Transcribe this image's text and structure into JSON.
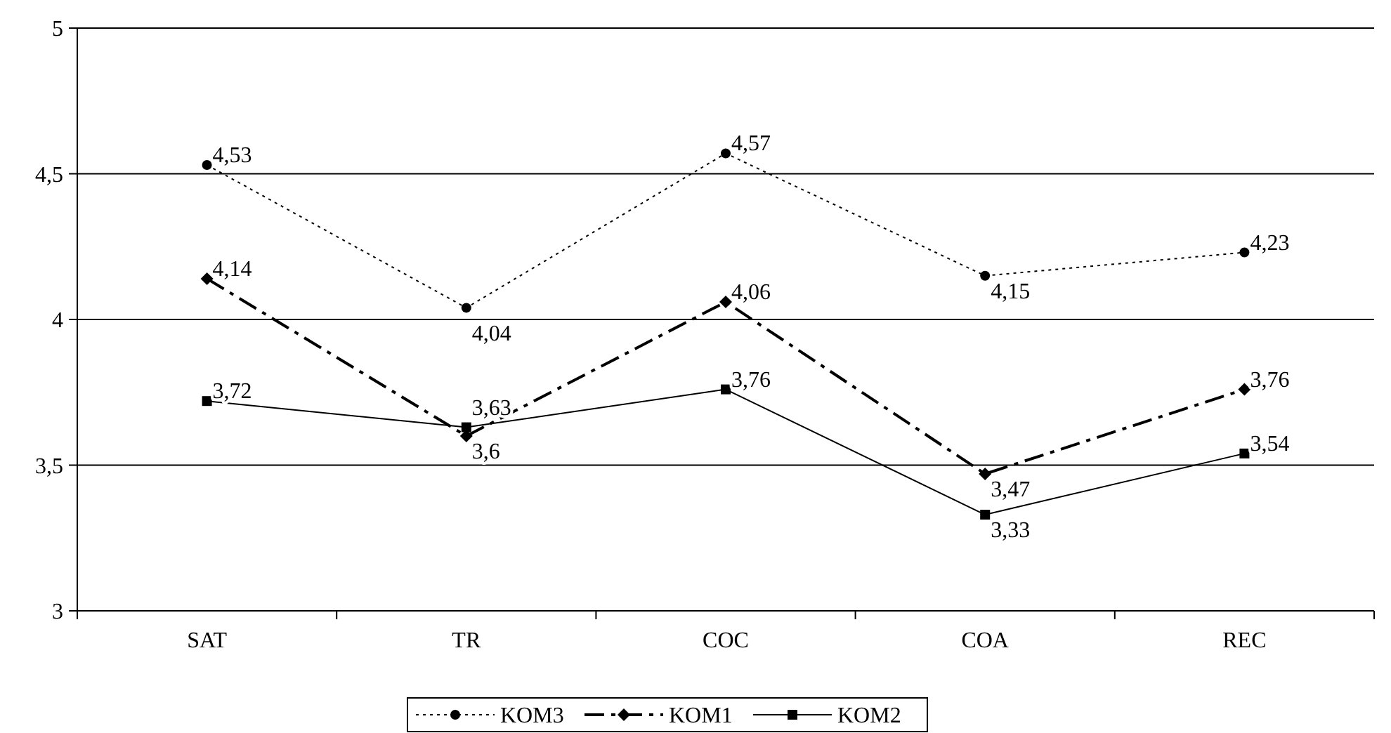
{
  "chart_data": {
    "type": "line",
    "categories": [
      "SAT",
      "TR",
      "COC",
      "COA",
      "REC"
    ],
    "series": [
      {
        "name": "KOM3",
        "color": "#000000",
        "line_style": "dotted",
        "marker": "circle",
        "values": [
          4.53,
          4.04,
          4.57,
          4.15,
          4.23
        ],
        "value_labels": [
          "4,53",
          "4,04",
          "4,57",
          "4,15",
          "4,23"
        ]
      },
      {
        "name": "KOM1",
        "color": "#000000",
        "line_style": "dashed",
        "marker": "diamond",
        "values": [
          4.14,
          3.6,
          4.06,
          3.47,
          3.76
        ],
        "value_labels": [
          "4,14",
          "3,6",
          "4,06",
          "3,47",
          "3,76"
        ]
      },
      {
        "name": "KOM2",
        "color": "#000000",
        "line_style": "solid",
        "marker": "square",
        "values": [
          3.72,
          3.63,
          3.76,
          3.33,
          3.54
        ],
        "value_labels": [
          "3,72",
          "3,63",
          "3,76",
          "3,33",
          "3,54"
        ]
      }
    ],
    "ylim": [
      3,
      5
    ],
    "yticks": [
      3,
      {
        "value": 3.5,
        "label": "3,5"
      },
      4,
      {
        "value": 4.5,
        "label": "4,5"
      },
      5
    ],
    "grid": "y",
    "legend": "bottom"
  }
}
